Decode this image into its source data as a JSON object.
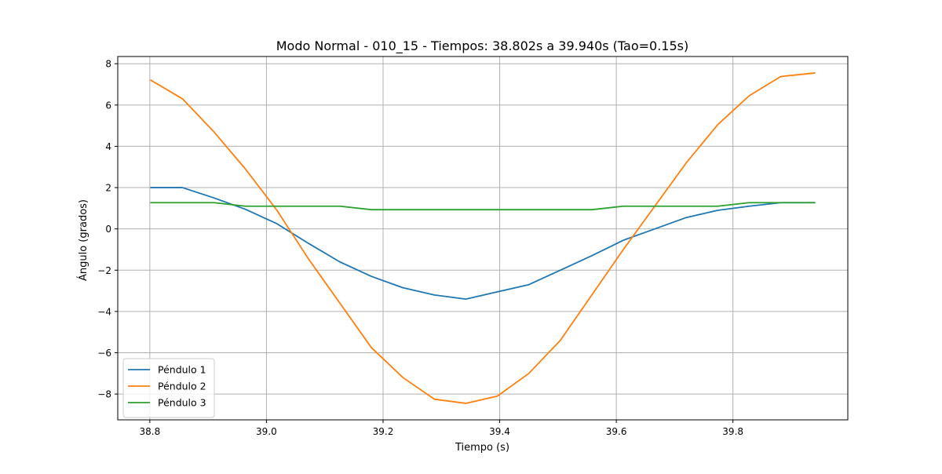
{
  "chart_data": {
    "type": "line",
    "title": "Modo Normal - 010_15 - Tiempos: 38.802s a 39.940s (Tao=0.15s)",
    "xlabel": "Tiempo (s)",
    "ylabel": "Ángulo (grados)",
    "xlim": [
      38.745,
      39.997
    ],
    "ylim": [
      -9.25,
      8.35
    ],
    "xticks": [
      38.8,
      39.0,
      39.2,
      39.4,
      39.6,
      39.8
    ],
    "xtick_labels": [
      "38.8",
      "39.0",
      "39.2",
      "39.4",
      "39.6",
      "39.8"
    ],
    "yticks": [
      8,
      6,
      4,
      2,
      0,
      -2,
      -4,
      -6,
      -8
    ],
    "ytick_labels": [
      "8",
      "6",
      "4",
      "2",
      "0",
      "−2",
      "−4",
      "−6",
      "−8"
    ],
    "grid": true,
    "legend_position": "lower-left",
    "x": [
      38.802,
      38.856,
      38.91,
      38.964,
      39.018,
      39.072,
      39.126,
      39.18,
      39.234,
      39.288,
      39.342,
      39.396,
      39.45,
      39.504,
      39.558,
      39.612,
      39.666,
      39.72,
      39.774,
      39.828,
      39.882,
      39.94
    ],
    "series": [
      {
        "name": "Péndulo 1",
        "color": "#1f77b4",
        "values": [
          2.0,
          2.0,
          1.5,
          0.95,
          0.25,
          -0.7,
          -1.6,
          -2.3,
          -2.85,
          -3.2,
          -3.4,
          -3.05,
          -2.7,
          -2.0,
          -1.3,
          -0.55,
          0.0,
          0.55,
          0.9,
          1.1,
          1.27,
          1.27
        ]
      },
      {
        "name": "Péndulo 2",
        "color": "#ff7f0e",
        "values": [
          7.2,
          6.3,
          4.7,
          2.9,
          0.9,
          -1.45,
          -3.6,
          -5.75,
          -7.2,
          -8.25,
          -8.45,
          -8.1,
          -7.0,
          -5.4,
          -3.2,
          -1.0,
          1.1,
          3.2,
          5.05,
          6.45,
          7.38,
          7.55
        ]
      },
      {
        "name": "Péndulo 3",
        "color": "#2ca02c",
        "values": [
          1.27,
          1.27,
          1.27,
          1.1,
          1.1,
          1.1,
          1.1,
          0.93,
          0.93,
          0.93,
          0.93,
          0.93,
          0.93,
          0.93,
          0.93,
          1.1,
          1.1,
          1.1,
          1.1,
          1.27,
          1.27,
          1.27
        ]
      }
    ]
  }
}
